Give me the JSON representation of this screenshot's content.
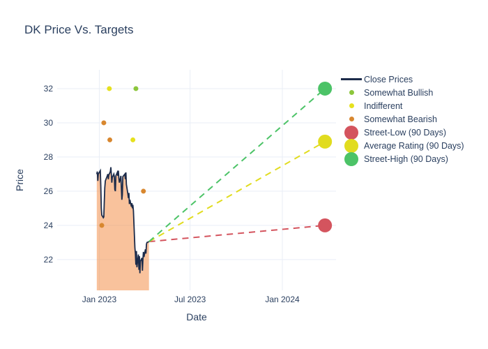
{
  "title": {
    "text": "DK Price Vs. Targets",
    "color": "#2a3f5f"
  },
  "chart_data": {
    "type": "line+scatter",
    "title": "DK Price Vs. Targets",
    "xlabel": "Date",
    "ylabel": "Price",
    "grid": true,
    "grid_color": "#e9eef6",
    "label_color": "#2a3f5f",
    "legend_position": "right",
    "axes": {
      "x_domain": [
        "2022-10-09",
        "2024-04-17"
      ],
      "y_domain": [
        20.2,
        33.1
      ],
      "x_ticks": [
        {
          "date": "2023-01-01",
          "label": "Jan 2023"
        },
        {
          "date": "2023-07-01",
          "label": "Jul 2023"
        },
        {
          "date": "2024-01-01",
          "label": "Jan 2024"
        }
      ],
      "y_ticks": [
        22,
        24,
        26,
        28,
        30,
        32
      ]
    },
    "close_prices": {
      "name": "Close Prices",
      "line_color": "#1c2b4a",
      "fill_color": "rgba(243,133,57,0.5)",
      "points": [
        [
          "2022-12-27",
          27.0
        ],
        [
          "2022-12-28",
          27.15
        ],
        [
          "2022-12-29",
          26.6
        ],
        [
          "2022-12-30",
          27.0
        ],
        [
          "2023-01-03",
          27.2
        ],
        [
          "2023-01-04",
          26.3
        ],
        [
          "2023-01-05",
          25.0
        ],
        [
          "2023-01-06",
          24.6
        ],
        [
          "2023-01-09",
          24.45
        ],
        [
          "2023-01-10",
          24.5
        ],
        [
          "2023-01-11",
          25.4
        ],
        [
          "2023-01-12",
          26.2
        ],
        [
          "2023-01-13",
          26.6
        ],
        [
          "2023-01-17",
          26.9
        ],
        [
          "2023-01-18",
          27.0
        ],
        [
          "2023-01-19",
          26.7
        ],
        [
          "2023-01-20",
          26.95
        ],
        [
          "2023-01-23",
          27.15
        ],
        [
          "2023-01-24",
          27.4
        ],
        [
          "2023-01-25",
          27.0
        ],
        [
          "2023-01-26",
          26.5
        ],
        [
          "2023-01-27",
          26.8
        ],
        [
          "2023-01-30",
          27.0
        ],
        [
          "2023-01-31",
          26.85
        ],
        [
          "2023-02-01",
          26.1
        ],
        [
          "2023-02-02",
          26.0
        ],
        [
          "2023-02-03",
          26.9
        ],
        [
          "2023-02-06",
          27.1
        ],
        [
          "2023-02-07",
          26.9
        ],
        [
          "2023-02-08",
          27.2
        ],
        [
          "2023-02-09",
          26.75
        ],
        [
          "2023-02-10",
          26.5
        ],
        [
          "2023-02-13",
          26.9
        ],
        [
          "2023-02-14",
          26.2
        ],
        [
          "2023-02-15",
          25.5
        ],
        [
          "2023-02-16",
          25.8
        ],
        [
          "2023-02-17",
          26.85
        ],
        [
          "2023-02-21",
          27.0
        ],
        [
          "2023-02-22",
          26.7
        ],
        [
          "2023-02-23",
          27.1
        ],
        [
          "2023-02-24",
          26.4
        ],
        [
          "2023-02-27",
          25.85
        ],
        [
          "2023-02-28",
          25.6
        ],
        [
          "2023-03-01",
          25.9
        ],
        [
          "2023-03-02",
          25.25
        ],
        [
          "2023-03-03",
          25.5
        ],
        [
          "2023-03-06",
          25.1
        ],
        [
          "2023-03-07",
          25.3
        ],
        [
          "2023-03-08",
          25.0
        ],
        [
          "2023-03-09",
          25.2
        ],
        [
          "2023-03-10",
          24.85
        ],
        [
          "2023-03-13",
          22.7
        ],
        [
          "2023-03-14",
          22.35
        ],
        [
          "2023-03-15",
          21.7
        ],
        [
          "2023-03-16",
          22.5
        ],
        [
          "2023-03-17",
          21.55
        ],
        [
          "2023-03-20",
          22.3
        ],
        [
          "2023-03-21",
          21.4
        ],
        [
          "2023-03-22",
          22.2
        ],
        [
          "2023-03-23",
          21.2
        ],
        [
          "2023-03-24",
          21.9
        ],
        [
          "2023-03-27",
          22.1
        ],
        [
          "2023-03-28",
          21.35
        ],
        [
          "2023-03-29",
          22.0
        ],
        [
          "2023-03-30",
          22.45
        ],
        [
          "2023-03-31",
          22.15
        ],
        [
          "2023-04-03",
          22.6
        ],
        [
          "2023-04-04",
          22.35
        ],
        [
          "2023-04-05",
          22.9
        ],
        [
          "2023-04-06",
          23.0
        ],
        [
          "2023-04-10",
          23.05
        ]
      ]
    },
    "ratings": [
      {
        "name": "Somewhat Bullish",
        "color": "#8cc63c",
        "points": [
          [
            "2023-03-15",
            32
          ]
        ]
      },
      {
        "name": "Indifferent",
        "color": "#e6e11e",
        "points": [
          [
            "2023-01-21",
            32
          ],
          [
            "2023-03-09",
            29
          ]
        ]
      },
      {
        "name": "Somewhat Bearish",
        "color": "#d8872f",
        "points": [
          [
            "2023-01-06",
            24
          ],
          [
            "2023-01-10",
            30
          ],
          [
            "2023-01-22",
            29
          ],
          [
            "2023-03-30",
            26
          ]
        ]
      }
    ],
    "targets": [
      {
        "name": "Street-Low (90 Days)",
        "color": "#d4545e",
        "start": [
          "2023-04-10",
          23.05
        ],
        "end": [
          "2024-03-26",
          24.0
        ]
      },
      {
        "name": "Average Rating (90 Days)",
        "color": "#e1dc1f",
        "start": [
          "2023-04-10",
          23.05
        ],
        "end": [
          "2024-03-26",
          28.9
        ]
      },
      {
        "name": "Street-High (90 Days)",
        "color": "#4cc367",
        "start": [
          "2023-04-10",
          23.05
        ],
        "end": [
          "2024-03-26",
          32.0
        ]
      }
    ],
    "legend": [
      {
        "label": "Close Prices",
        "marker": "line",
        "color": "#1c2b4a"
      },
      {
        "label": "Somewhat Bullish",
        "marker": "dot",
        "color": "#8cc63c"
      },
      {
        "label": "Indifferent",
        "marker": "dot",
        "color": "#e6e11e"
      },
      {
        "label": "Somewhat Bearish",
        "marker": "dot",
        "color": "#d8872f"
      },
      {
        "label": "Street-Low (90 Days)",
        "marker": "big-dot",
        "color": "#d4545e"
      },
      {
        "label": "Average Rating (90 Days)",
        "marker": "big-dot",
        "color": "#e1dc1f"
      },
      {
        "label": "Street-High (90 Days)",
        "marker": "big-dot",
        "color": "#4cc367"
      }
    ]
  }
}
